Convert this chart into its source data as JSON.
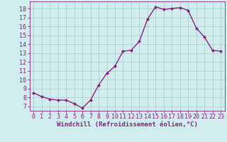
{
  "x": [
    0,
    1,
    2,
    3,
    4,
    5,
    6,
    7,
    8,
    9,
    10,
    11,
    12,
    13,
    14,
    15,
    16,
    17,
    18,
    19,
    20,
    21,
    22,
    23
  ],
  "y": [
    8.5,
    8.1,
    7.8,
    7.7,
    7.7,
    7.3,
    6.8,
    7.7,
    9.4,
    10.7,
    11.5,
    13.2,
    13.3,
    14.3,
    16.8,
    18.2,
    17.9,
    18.0,
    18.1,
    17.8,
    15.8,
    14.8,
    13.3,
    13.2
  ],
  "line_color": "#882288",
  "marker": "D",
  "marker_size": 2.0,
  "bg_color": "#d0ecec",
  "grid_color": "#aacccc",
  "xlabel": "Windchill (Refroidissement éolien,°C)",
  "ylim": [
    6.5,
    18.8
  ],
  "xlim": [
    -0.5,
    23.5
  ],
  "yticks": [
    7,
    8,
    9,
    10,
    11,
    12,
    13,
    14,
    15,
    16,
    17,
    18
  ],
  "xticks": [
    0,
    1,
    2,
    3,
    4,
    5,
    6,
    7,
    8,
    9,
    10,
    11,
    12,
    13,
    14,
    15,
    16,
    17,
    18,
    19,
    20,
    21,
    22,
    23
  ],
  "axis_color": "#882288",
  "tick_color": "#882288",
  "xlabel_color": "#882288",
  "xlabel_fontsize": 6.5,
  "tick_fontsize": 6.0,
  "linewidth": 1.0
}
